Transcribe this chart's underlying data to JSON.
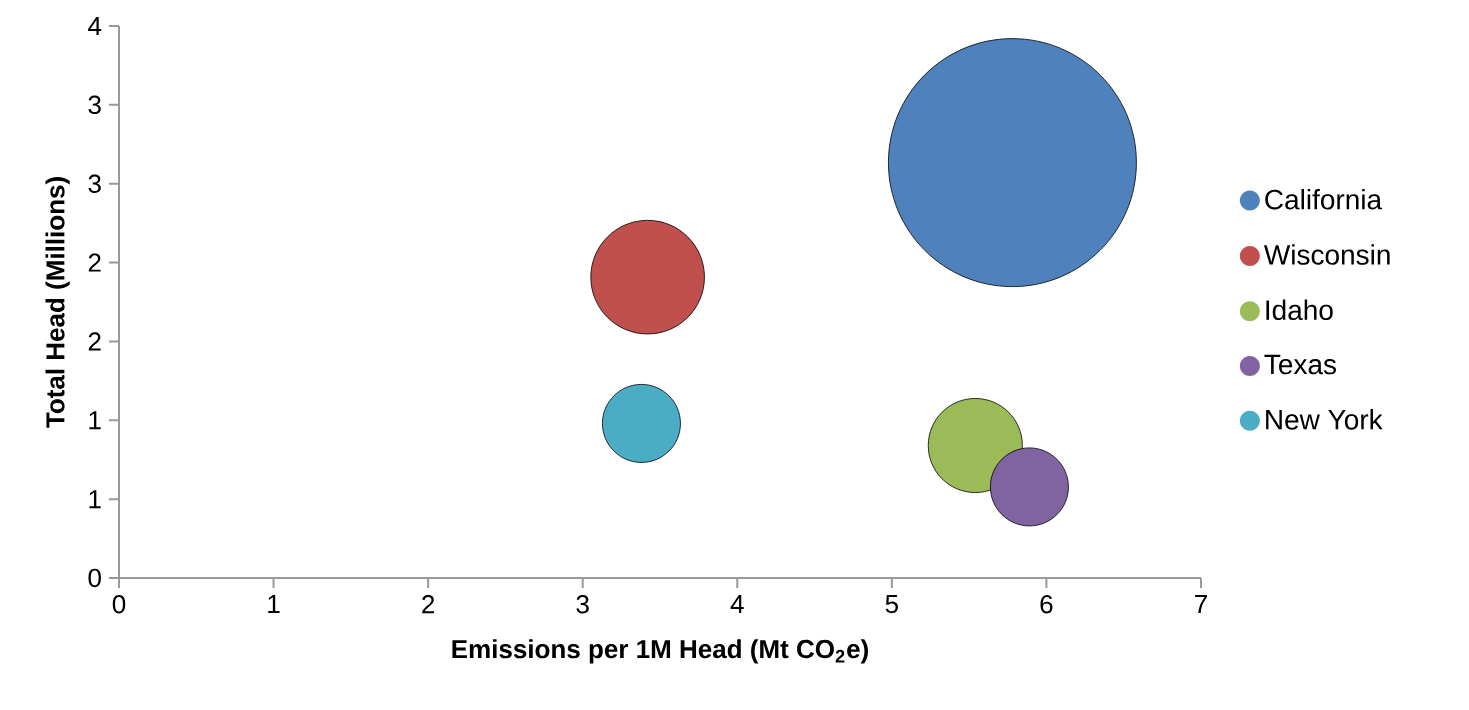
{
  "chart_data": {
    "type": "bubble",
    "xlabel": "Emissions per 1M Head (Mt CO$_{2}$e)",
    "ylabel": "Total Head (Millions)",
    "xlim": [
      0,
      7
    ],
    "xticks": [
      0,
      1,
      2,
      3,
      4,
      5,
      6,
      7
    ],
    "ylim": [
      0,
      4
    ],
    "yticks": [
      0,
      {
        "value": 0.571,
        "label": "1"
      },
      {
        "value": 1.143,
        "label": "1"
      },
      {
        "value": 1.714,
        "label": "2"
      },
      {
        "value": 2.286,
        "label": "2"
      },
      {
        "value": 2.857,
        "label": "3"
      },
      {
        "value": 3.429,
        "label": "3"
      },
      4
    ],
    "grid": false,
    "legend": "right",
    "series": [
      {
        "name": "California",
        "color": "#4f81bd",
        "x": [
          5.78
        ],
        "values": [
          3.01
        ],
        "sizes": [
          1
        ]
      },
      {
        "name": "Wisconsin",
        "color": "#c0504d",
        "x": [
          3.42
        ],
        "values": [
          2.18
        ],
        "sizes": [
          0.21
        ]
      },
      {
        "name": "Idaho",
        "color": "#9bbb59",
        "x": [
          5.54
        ],
        "values": [
          0.96
        ],
        "sizes": [
          0.144
        ]
      },
      {
        "name": "Texas",
        "color": "#8064a2",
        "x": [
          5.89
        ],
        "values": [
          0.66
        ],
        "sizes": [
          0.099
        ]
      },
      {
        "name": "New York",
        "color": "#4bacc6",
        "x": [
          3.38
        ],
        "values": [
          1.12
        ],
        "sizes": [
          0.099
        ]
      }
    ]
  }
}
